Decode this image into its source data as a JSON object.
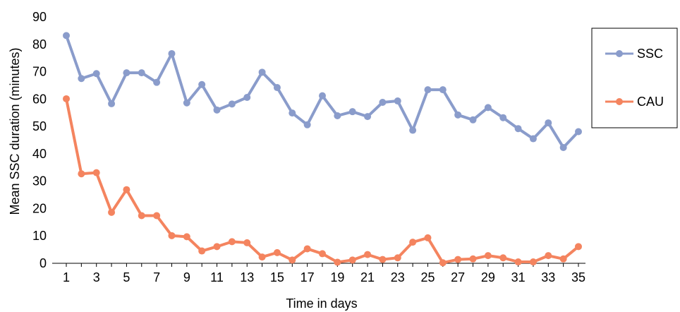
{
  "chart_data": {
    "type": "line",
    "title": "",
    "xlabel": "Time in days",
    "ylabel": "Mean SSC duration (minutes)",
    "ylim": [
      0,
      90
    ],
    "y_ticks": [
      "0",
      "10",
      "20",
      "30",
      "40",
      "50",
      "60",
      "70",
      "80",
      "90"
    ],
    "x_tick_labels": [
      "1",
      "3",
      "5",
      "7",
      "9",
      "11",
      "13",
      "15",
      "17",
      "19",
      "21",
      "23",
      "25",
      "27",
      "29",
      "31",
      "33",
      "35"
    ],
    "x": [
      1,
      2,
      3,
      4,
      5,
      6,
      7,
      8,
      9,
      10,
      11,
      12,
      13,
      14,
      15,
      16,
      17,
      18,
      19,
      20,
      21,
      22,
      23,
      24,
      25,
      26,
      27,
      28,
      29,
      30,
      31,
      32,
      33,
      34,
      35
    ],
    "grid": false,
    "legend_position": "right",
    "series": [
      {
        "name": "SSC",
        "color": "#8A9CCB",
        "values": [
          83.2,
          67.5,
          69.3,
          58.3,
          69.6,
          69.6,
          66.1,
          76.6,
          58.6,
          65.3,
          56.0,
          58.2,
          60.6,
          69.8,
          64.2,
          54.9,
          50.6,
          61.2,
          53.9,
          55.4,
          53.6,
          58.8,
          59.3,
          48.6,
          63.4,
          63.4,
          54.2,
          52.4,
          56.9,
          53.2,
          49.2,
          45.5,
          51.3,
          42.3,
          48.1
        ]
      },
      {
        "name": "CAU",
        "color": "#F4845F",
        "values": [
          60.1,
          32.7,
          33.1,
          18.6,
          26.9,
          17.4,
          17.4,
          10.1,
          9.7,
          4.5,
          6.1,
          7.9,
          7.5,
          2.3,
          3.9,
          1.2,
          5.3,
          3.5,
          0.4,
          1.2,
          3.2,
          1.4,
          2.0,
          7.7,
          9.3,
          0.2,
          1.4,
          1.6,
          2.8,
          2.0,
          0.5,
          0.5,
          2.8,
          1.6,
          6.1
        ]
      }
    ]
  }
}
